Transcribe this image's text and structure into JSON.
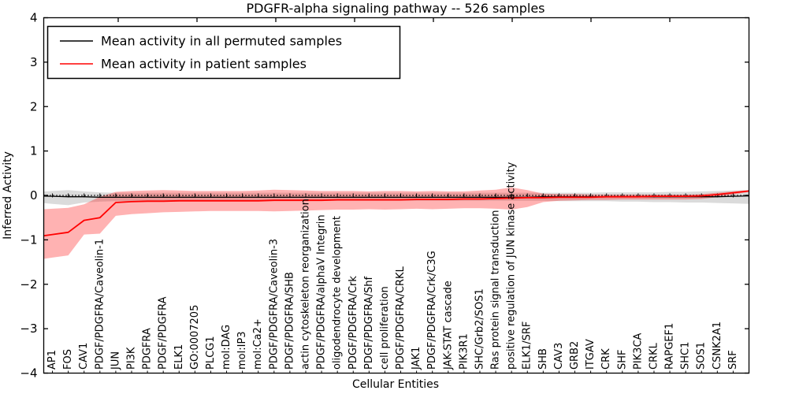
{
  "chart_data": {
    "type": "line",
    "title": "PDGFR-alpha signaling pathway -- 526 samples",
    "xlabel": "Cellular Entities",
    "ylabel": "Inferred Activity",
    "ylim": [
      -4,
      4
    ],
    "yticks": [
      4,
      3,
      2,
      1,
      0,
      -1,
      -2,
      -3,
      -4
    ],
    "grid": false,
    "zero_reference_line": 0,
    "legend": {
      "position": "upper left",
      "entries": [
        {
          "label": "Mean activity in all permuted samples",
          "color": "#000000"
        },
        {
          "label": "Mean activity in patient samples",
          "color": "#ff0000"
        }
      ]
    },
    "categories": [
      "AP1",
      "FOS",
      "CAV1",
      "PDGF/PDGFRA/Caveolin-1",
      "JUN",
      "PI3K",
      "PDGFRA",
      "PDGF/PDGFRA",
      "ELK1",
      "GO:0007205",
      "PLCG1",
      "mol:DAG",
      "mol:IP3",
      "mol:Ca2+",
      "PDGF/PDGFRA/Caveolin-3",
      "PDGF/PDGFRA/SHB",
      "actin cytoskeleton reorganization",
      "PDGF/PDGFRA/alphaV Integrin",
      "oligodendrocyte development",
      "PDGF/PDGFRA/Crk",
      "PDGF/PDGFRA/Shf",
      "cell proliferation",
      "PDGF/PDGFRA/CRKL",
      "JAK1",
      "PDGF/PDGFRA/Crk/C3G",
      "JAK-STAT cascade",
      "PIK3R1",
      "SHC/Grb2/SOS1",
      "Ras protein signal transduction",
      "positive regulation of JUN kinase activity",
      "ELK1/SRF",
      "SHB",
      "CAV3",
      "GRB2",
      "ITGAV",
      "CRK",
      "SHF",
      "PIK3CA",
      "CRKL",
      "RAPGEF1",
      "SHC1",
      "SOS1",
      "CSNK2A1",
      "SRF"
    ],
    "series": [
      {
        "name": "Mean activity in all permuted samples",
        "color": "#000000",
        "band_color": "rgba(0,0,0,0.14)",
        "values": [
          -0.02,
          -0.03,
          -0.03,
          -0.04,
          -0.04,
          -0.04,
          -0.04,
          -0.04,
          -0.04,
          -0.04,
          -0.04,
          -0.04,
          -0.04,
          -0.04,
          -0.04,
          -0.04,
          -0.04,
          -0.04,
          -0.04,
          -0.04,
          -0.04,
          -0.04,
          -0.04,
          -0.04,
          -0.04,
          -0.04,
          -0.04,
          -0.04,
          -0.04,
          -0.04,
          -0.04,
          -0.03,
          -0.03,
          -0.03,
          -0.03,
          -0.03,
          -0.03,
          -0.03,
          -0.03,
          -0.03,
          -0.03,
          -0.03,
          -0.03,
          -0.02
        ],
        "band_upper": [
          0.1,
          0.12,
          0.09,
          0.07,
          0.06,
          0.06,
          0.06,
          0.06,
          0.06,
          0.06,
          0.06,
          0.06,
          0.06,
          0.06,
          0.06,
          0.06,
          0.06,
          0.06,
          0.06,
          0.06,
          0.06,
          0.06,
          0.06,
          0.06,
          0.06,
          0.06,
          0.06,
          0.06,
          0.06,
          0.06,
          0.06,
          0.06,
          0.06,
          0.06,
          0.06,
          0.07,
          0.07,
          0.07,
          0.07,
          0.08,
          0.08,
          0.09,
          0.1,
          0.11
        ],
        "band_lower": [
          -0.19,
          -0.22,
          -0.16,
          -0.14,
          -0.13,
          -0.13,
          -0.13,
          -0.13,
          -0.13,
          -0.12,
          -0.12,
          -0.12,
          -0.12,
          -0.12,
          -0.12,
          -0.12,
          -0.12,
          -0.12,
          -0.12,
          -0.12,
          -0.12,
          -0.12,
          -0.12,
          -0.12,
          -0.12,
          -0.12,
          -0.12,
          -0.12,
          -0.12,
          -0.12,
          -0.12,
          -0.12,
          -0.13,
          -0.13,
          -0.13,
          -0.13,
          -0.14,
          -0.14,
          -0.15,
          -0.15,
          -0.16,
          -0.16,
          -0.17,
          -0.18
        ]
      },
      {
        "name": "Mean activity in patient samples",
        "color": "#ff0000",
        "band_color": "rgba(255,0,0,0.30)",
        "values": [
          -0.88,
          -0.83,
          -0.56,
          -0.5,
          -0.16,
          -0.14,
          -0.13,
          -0.13,
          -0.12,
          -0.12,
          -0.12,
          -0.12,
          -0.12,
          -0.12,
          -0.11,
          -0.11,
          -0.11,
          -0.11,
          -0.1,
          -0.1,
          -0.1,
          -0.1,
          -0.1,
          -0.09,
          -0.09,
          -0.09,
          -0.08,
          -0.08,
          -0.07,
          -0.06,
          -0.05,
          -0.05,
          -0.04,
          -0.04,
          -0.04,
          -0.03,
          -0.03,
          -0.03,
          -0.02,
          -0.02,
          -0.02,
          -0.01,
          0.02,
          0.06
        ],
        "band_upper": [
          -0.3,
          -0.28,
          -0.2,
          -0.03,
          0.08,
          0.1,
          0.11,
          0.12,
          0.11,
          0.1,
          0.1,
          0.1,
          0.1,
          0.11,
          0.13,
          0.12,
          0.11,
          0.1,
          0.1,
          0.1,
          0.09,
          0.1,
          0.1,
          0.09,
          0.1,
          0.09,
          0.09,
          0.11,
          0.13,
          0.18,
          0.12,
          0.04,
          0.03,
          0.03,
          0.02,
          0.02,
          0.02,
          0.02,
          0.02,
          0.02,
          0.02,
          0.03,
          0.06,
          0.09
        ],
        "band_lower": [
          -1.4,
          -1.35,
          -0.88,
          -0.86,
          -0.46,
          -0.42,
          -0.4,
          -0.38,
          -0.37,
          -0.36,
          -0.35,
          -0.35,
          -0.35,
          -0.35,
          -0.36,
          -0.35,
          -0.34,
          -0.33,
          -0.32,
          -0.32,
          -0.31,
          -0.32,
          -0.31,
          -0.3,
          -0.31,
          -0.3,
          -0.29,
          -0.29,
          -0.3,
          -0.32,
          -0.26,
          -0.15,
          -0.12,
          -0.11,
          -0.1,
          -0.1,
          -0.09,
          -0.09,
          -0.09,
          -0.09,
          -0.09,
          -0.08,
          -0.04,
          0.02
        ]
      }
    ]
  }
}
